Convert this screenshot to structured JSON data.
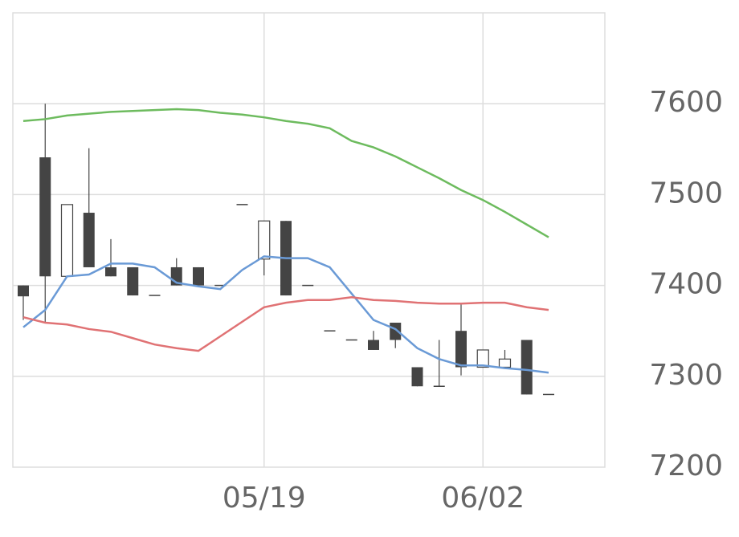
{
  "chart_data": {
    "type": "candlestick",
    "categories": [
      null,
      null,
      null,
      null,
      null,
      null,
      null,
      null,
      null,
      null,
      null,
      "05/19",
      null,
      null,
      null,
      null,
      null,
      null,
      null,
      null,
      null,
      "06/02",
      null,
      null,
      null
    ],
    "open": [
      7400,
      7541,
      7410,
      7480,
      7420,
      7420,
      7389,
      7420,
      7420,
      7400,
      7489,
      7429,
      7471,
      7400,
      7350,
      7340,
      7340,
      7359,
      7310,
      7289,
      7350,
      7310,
      7310,
      7340,
      7280
    ],
    "high": [
      7400,
      7600,
      7489,
      7551,
      7451,
      7420,
      7389,
      7430,
      7420,
      7400,
      7489,
      7471,
      7471,
      7400,
      7350,
      7340,
      7350,
      7359,
      7310,
      7340,
      7379,
      7329,
      7329,
      7340,
      7280
    ],
    "low": [
      7362,
      7359,
      7410,
      7420,
      7410,
      7389,
      7389,
      7400,
      7400,
      7400,
      7489,
      7411,
      7389,
      7400,
      7350,
      7340,
      7329,
      7331,
      7289,
      7289,
      7301,
      7310,
      7310,
      7280,
      7280
    ],
    "close": [
      7388,
      7410,
      7489,
      7420,
      7410,
      7389,
      7389,
      7400,
      7400,
      7400,
      7489,
      7471,
      7389,
      7400,
      7350,
      7340,
      7329,
      7340,
      7289,
      7289,
      7310,
      7329,
      7319,
      7280,
      7280
    ],
    "candle_color": "#444444",
    "series": [
      {
        "color": "#6a9ad6",
        "values": [
          7354,
          7373,
          7410,
          7412,
          7424,
          7424,
          7420,
          7403,
          7399,
          7396,
          7417,
          7432,
          7430,
          7430,
          7420,
          7391,
          7362,
          7352,
          7331,
          7319,
          7312,
          7312,
          7309,
          7307,
          7304
        ]
      },
      {
        "color": "#e07274",
        "values": [
          7365,
          7359,
          7357,
          7352,
          7349,
          7342,
          7335,
          7331,
          7328,
          7344,
          7360,
          7376,
          7381,
          7384,
          7384,
          7387,
          7384,
          7383,
          7381,
          7380,
          7380,
          7381,
          7381,
          7376,
          7373
        ]
      },
      {
        "color": "#6dbb5e",
        "values": [
          7581,
          7583,
          7587,
          7589,
          7591,
          7592,
          7593,
          7594,
          7593,
          7590,
          7588,
          7585,
          7581,
          7578,
          7573,
          7559,
          7552,
          7542,
          7530,
          7518,
          7505,
          7494,
          7481,
          7467,
          7453
        ]
      }
    ],
    "ylim": [
      7200,
      7700
    ],
    "yticks": [
      7200,
      7300,
      7400,
      7500,
      7600
    ],
    "grid": true
  }
}
